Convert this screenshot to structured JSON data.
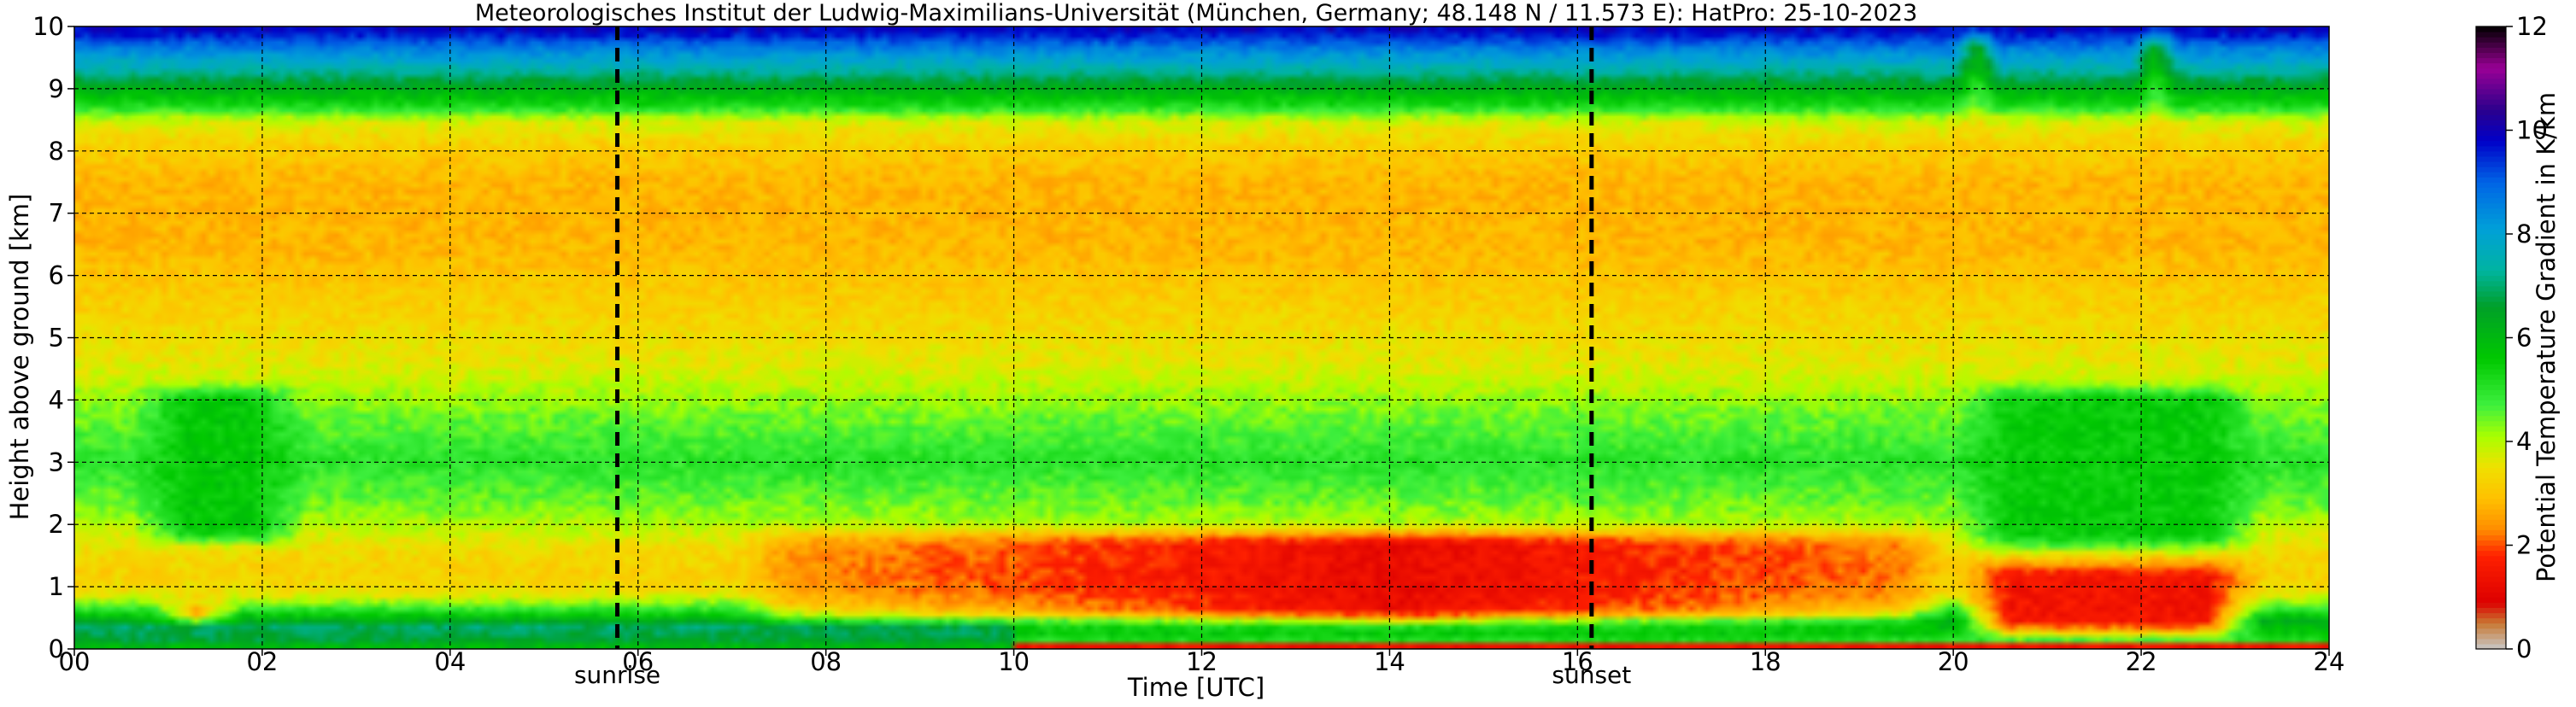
{
  "chart_data": {
    "type": "heatmap",
    "title": "Meteorologisches Institut der Ludwig-Maximilians-Universität (München, Germany; 48.148 N / 11.573 E):    HatPro: 25-10-2023",
    "xlabel": "Time [UTC]",
    "ylabel": "Height above ground [km]",
    "xlim": [
      0,
      24
    ],
    "ylim": [
      0,
      10
    ],
    "x_ticks": [
      {
        "value": 0,
        "label": "00"
      },
      {
        "value": 2,
        "label": "02"
      },
      {
        "value": 4,
        "label": "04"
      },
      {
        "value": 6,
        "label": "06"
      },
      {
        "value": 8,
        "label": "08"
      },
      {
        "value": 10,
        "label": "10"
      },
      {
        "value": 12,
        "label": "12"
      },
      {
        "value": 14,
        "label": "14"
      },
      {
        "value": 16,
        "label": "16"
      },
      {
        "value": 18,
        "label": "18"
      },
      {
        "value": 20,
        "label": "20"
      },
      {
        "value": 22,
        "label": "22"
      },
      {
        "value": 24,
        "label": "24"
      }
    ],
    "y_ticks": [
      {
        "value": 0,
        "label": "0"
      },
      {
        "value": 1,
        "label": "1"
      },
      {
        "value": 2,
        "label": "2"
      },
      {
        "value": 3,
        "label": "3"
      },
      {
        "value": 4,
        "label": "4"
      },
      {
        "value": 5,
        "label": "5"
      },
      {
        "value": 6,
        "label": "6"
      },
      {
        "value": 7,
        "label": "7"
      },
      {
        "value": 8,
        "label": "8"
      },
      {
        "value": 9,
        "label": "9"
      },
      {
        "value": 10,
        "label": "10"
      }
    ],
    "grid": true,
    "markers": [
      {
        "time": 5.78,
        "label": "sunrise"
      },
      {
        "time": 16.15,
        "label": "sunset"
      }
    ],
    "colorbar": {
      "label": "Potential Temperature Gradient in K/km",
      "range": [
        0,
        12
      ],
      "ticks": [
        {
          "value": 0,
          "label": "0"
        },
        {
          "value": 2,
          "label": "2"
        },
        {
          "value": 4,
          "label": "4"
        },
        {
          "value": 6,
          "label": "6"
        },
        {
          "value": 8,
          "label": "8"
        },
        {
          "value": 10,
          "label": "10"
        },
        {
          "value": 12,
          "label": "12"
        }
      ],
      "colors": [
        {
          "value": 0.0,
          "color": "#c8c8c8"
        },
        {
          "value": 0.5,
          "color": "#c87832"
        },
        {
          "value": 0.9,
          "color": "#dc0000"
        },
        {
          "value": 1.8,
          "color": "#ff2000"
        },
        {
          "value": 2.3,
          "color": "#ff8c00"
        },
        {
          "value": 2.9,
          "color": "#ffc000"
        },
        {
          "value": 3.5,
          "color": "#f0e000"
        },
        {
          "value": 4.1,
          "color": "#aaff00"
        },
        {
          "value": 4.7,
          "color": "#3ef03e"
        },
        {
          "value": 5.6,
          "color": "#00c800"
        },
        {
          "value": 6.6,
          "color": "#00a028"
        },
        {
          "value": 7.3,
          "color": "#00b4a0"
        },
        {
          "value": 8.1,
          "color": "#00a0d8"
        },
        {
          "value": 9.0,
          "color": "#0064e6"
        },
        {
          "value": 9.8,
          "color": "#0000c8"
        },
        {
          "value": 10.4,
          "color": "#2c008c"
        },
        {
          "value": 11.2,
          "color": "#9a0096"
        },
        {
          "value": 12.0,
          "color": "#000000"
        }
      ]
    },
    "height_profile_base": [
      {
        "h": 0.0,
        "v": 2.0
      },
      {
        "h": 0.1,
        "v": 5.0
      },
      {
        "h": 0.45,
        "v": 6.3
      },
      {
        "h": 0.7,
        "v": 4.5
      },
      {
        "h": 0.9,
        "v": 3.5
      },
      {
        "h": 1.2,
        "v": 3.2
      },
      {
        "h": 1.6,
        "v": 3.4
      },
      {
        "h": 2.2,
        "v": 4.3
      },
      {
        "h": 3.0,
        "v": 5.0
      },
      {
        "h": 3.8,
        "v": 4.4
      },
      {
        "h": 4.6,
        "v": 3.6
      },
      {
        "h": 5.5,
        "v": 3.2
      },
      {
        "h": 6.5,
        "v": 2.8
      },
      {
        "h": 7.5,
        "v": 2.8
      },
      {
        "h": 8.1,
        "v": 3.2
      },
      {
        "h": 8.5,
        "v": 3.8
      },
      {
        "h": 8.7,
        "v": 5.1
      },
      {
        "h": 9.0,
        "v": 6.2
      },
      {
        "h": 9.3,
        "v": 7.4
      },
      {
        "h": 9.6,
        "v": 8.4
      },
      {
        "h": 9.85,
        "v": 9.5
      },
      {
        "h": 10.0,
        "v": 10.0
      }
    ],
    "features": [
      {
        "t0": 7.0,
        "t1": 20.0,
        "h0": 0.3,
        "h1": 2.0,
        "v": 1.2,
        "peak_time": 14.0
      },
      {
        "t0": 0.8,
        "t1": 1.8,
        "h0": 0.3,
        "h1": 0.9,
        "v": 1.8
      },
      {
        "t0": 0.6,
        "t1": 2.5,
        "h0": 1.6,
        "h1": 4.3,
        "v": 5.6
      },
      {
        "t0": 20.0,
        "t1": 23.3,
        "h0": 1.5,
        "h1": 4.3,
        "v": 5.5
      },
      {
        "t0": 20.0,
        "t1": 20.5,
        "h0": 7.5,
        "h1": 10.0,
        "v": 3.0
      },
      {
        "t0": 21.9,
        "t1": 22.4,
        "h0": 7.0,
        "h1": 10.0,
        "v": 3.0
      },
      {
        "t0": 20.0,
        "t1": 23.3,
        "h0": 0.1,
        "h1": 1.5,
        "v": 1.5
      }
    ]
  }
}
